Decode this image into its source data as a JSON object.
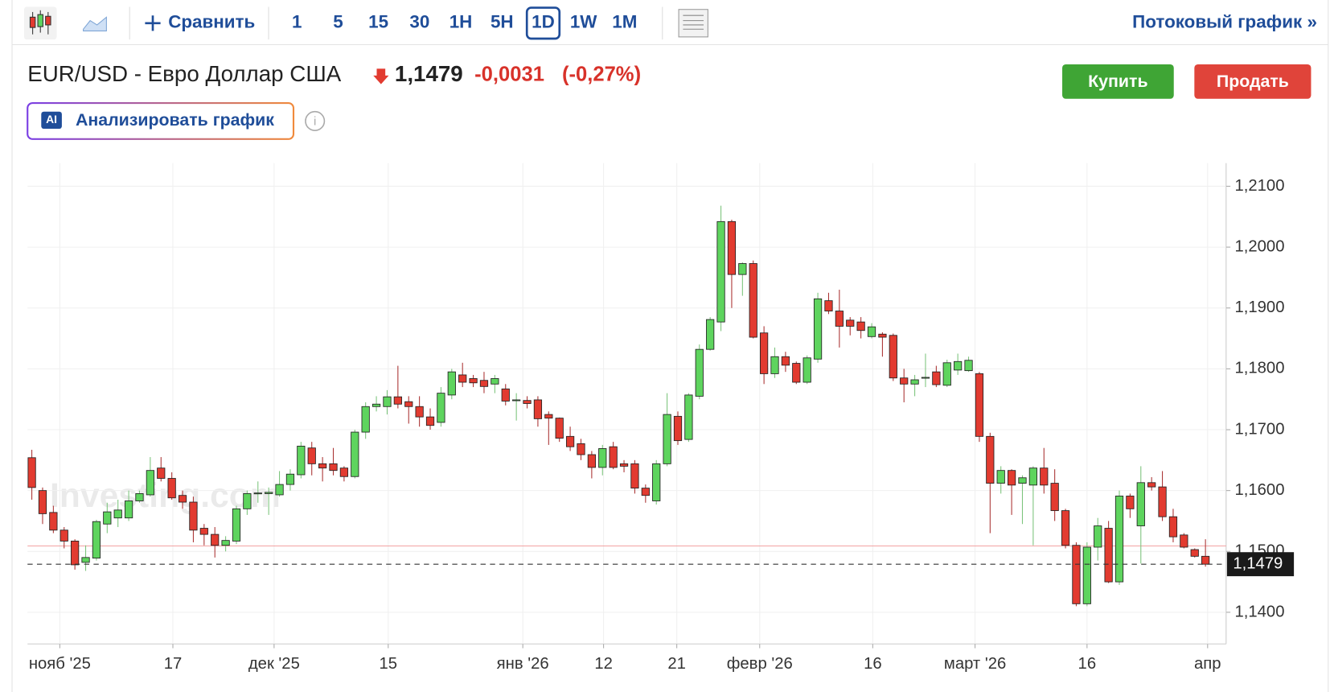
{
  "toolbar": {
    "compare": "Сравнить",
    "intervals": [
      "1",
      "5",
      "15",
      "30",
      "1H",
      "5H",
      "1D",
      "1W",
      "1M"
    ],
    "selected_interval": "1D",
    "streaming": "Потоковый график »"
  },
  "header": {
    "title": "EUR/USD - Евро Доллар США",
    "price": "1,1479",
    "change": "-0,0031",
    "change_pct": "(-0,27%)",
    "buy": "Купить",
    "sell": "Продать",
    "ai_badge": "AI",
    "analyze": "Анализировать график"
  },
  "watermark": "Investing.com",
  "chart_data": {
    "type": "candlestick",
    "up_color": "#5ed45e",
    "down_color": "#e23b30",
    "open": [
      1.1654,
      1.16,
      1.1564,
      1.1535,
      1.1517,
      1.1482,
      1.1489,
      1.1545,
      1.1555,
      1.1555,
      1.1583,
      1.1593,
      1.1637,
      1.162,
      1.1592,
      1.1581,
      1.1538,
      1.1528,
      1.151,
      1.1517,
      1.157,
      1.1595,
      1.1595,
      1.1593,
      1.161,
      1.1626,
      1.167,
      1.1644,
      1.1644,
      1.1637,
      1.1623,
      1.1696,
      1.1738,
      1.1738,
      1.1754,
      1.1746,
      1.1738,
      1.1721,
      1.1712,
      1.1757,
      1.179,
      1.1784,
      1.1781,
      1.1775,
      1.1767,
      1.1748,
      1.1748,
      1.1749,
      1.1725,
      1.1719,
      1.1689,
      1.1677,
      1.1659,
      1.1638,
      1.1672,
      1.1644,
      1.1644,
      1.1604,
      1.1583,
      1.1644,
      1.1722,
      1.1684,
      1.1755,
      1.1832,
      1.1877,
      1.2042,
      1.1955,
      1.1973,
      1.1859,
      1.1792,
      1.182,
      1.1809,
      1.1778,
      1.1816,
      1.1912,
      1.1895,
      1.188,
      1.1877,
      1.1853,
      1.1857,
      1.1855,
      1.1785,
      1.1775,
      1.1785,
      1.1795,
      1.1773,
      1.1798,
      1.1797,
      1.1792,
      1.1689,
      1.1612,
      1.1633,
      1.1612,
      1.1609,
      1.1637,
      1.1612,
      1.1567,
      1.151,
      1.1414,
      1.1507,
      1.1538,
      1.145,
      1.1591,
      1.1542,
      1.1613,
      1.1606,
      1.1557,
      1.1527,
      1.1503,
      1.1492
    ],
    "high": [
      1.1667,
      1.1605,
      1.1575,
      1.154,
      1.152,
      1.151,
      1.1552,
      1.158,
      1.1585,
      1.16,
      1.16,
      1.1655,
      1.1655,
      1.163,
      1.16,
      1.159,
      1.1545,
      1.154,
      1.1525,
      1.1575,
      1.16,
      1.1615,
      1.1605,
      1.1632,
      1.1635,
      1.168,
      1.168,
      1.1655,
      1.167,
      1.164,
      1.17,
      1.1745,
      1.1755,
      1.1765,
      1.1805,
      1.1755,
      1.1755,
      1.1735,
      1.177,
      1.18,
      1.181,
      1.179,
      1.1795,
      1.179,
      1.1775,
      1.176,
      1.1755,
      1.1755,
      1.173,
      1.172,
      1.1705,
      1.1685,
      1.1665,
      1.1675,
      1.168,
      1.165,
      1.165,
      1.161,
      1.165,
      1.176,
      1.173,
      1.176,
      1.184,
      1.1885,
      1.2068,
      1.2045,
      1.1975,
      1.1978,
      1.187,
      1.1835,
      1.1828,
      1.1812,
      1.1822,
      1.1925,
      1.1925,
      1.193,
      1.1885,
      1.1885,
      1.1875,
      1.186,
      1.1858,
      1.18,
      1.179,
      1.1825,
      1.1805,
      1.1815,
      1.1825,
      1.182,
      1.1795,
      1.1695,
      1.164,
      1.1635,
      1.1625,
      1.164,
      1.167,
      1.1635,
      1.157,
      1.1515,
      1.1515,
      1.1555,
      1.155,
      1.16,
      1.1595,
      1.164,
      1.1622,
      1.1632,
      1.157,
      1.153,
      1.1505,
      1.152
    ],
    "low": [
      1.1585,
      1.1545,
      1.153,
      1.1505,
      1.147,
      1.1468,
      1.1485,
      1.153,
      1.154,
      1.155,
      1.158,
      1.159,
      1.1615,
      1.1585,
      1.157,
      1.1515,
      1.151,
      1.149,
      1.15,
      1.1512,
      1.156,
      1.158,
      1.156,
      1.159,
      1.16,
      1.162,
      1.1625,
      1.1615,
      1.1625,
      1.1615,
      1.162,
      1.1685,
      1.173,
      1.1725,
      1.1735,
      1.171,
      1.1705,
      1.17,
      1.1705,
      1.175,
      1.177,
      1.177,
      1.176,
      1.176,
      1.174,
      1.1715,
      1.1735,
      1.1705,
      1.1675,
      1.168,
      1.1665,
      1.165,
      1.162,
      1.1625,
      1.1635,
      1.163,
      1.1595,
      1.158,
      1.1577,
      1.164,
      1.1675,
      1.168,
      1.175,
      1.183,
      1.1862,
      1.19,
      1.192,
      1.185,
      1.1775,
      1.1785,
      1.1795,
      1.1775,
      1.1775,
      1.181,
      1.189,
      1.1835,
      1.1855,
      1.185,
      1.185,
      1.182,
      1.178,
      1.1745,
      1.1755,
      1.177,
      1.177,
      1.177,
      1.179,
      1.1795,
      1.168,
      1.153,
      1.1595,
      1.156,
      1.1545,
      1.151,
      1.1595,
      1.155,
      1.1505,
      1.141,
      1.141,
      1.1485,
      1.1448,
      1.1445,
      1.1555,
      1.148,
      1.16,
      1.155,
      1.1515,
      1.1505,
      1.149,
      1.1475
    ],
    "close": [
      1.1605,
      1.1562,
      1.1535,
      1.1517,
      1.1478,
      1.149,
      1.1549,
      1.1565,
      1.1568,
      1.1583,
      1.1595,
      1.1633,
      1.162,
      1.1588,
      1.1581,
      1.1535,
      1.1528,
      1.151,
      1.1518,
      1.157,
      1.1595,
      1.1596,
      1.1597,
      1.161,
      1.1627,
      1.1673,
      1.1644,
      1.1637,
      1.1633,
      1.1623,
      1.1696,
      1.1738,
      1.1742,
      1.1754,
      1.1742,
      1.1738,
      1.1721,
      1.1707,
      1.176,
      1.1795,
      1.1778,
      1.1777,
      1.1771,
      1.1784,
      1.1747,
      1.1749,
      1.1743,
      1.1718,
      1.1719,
      1.1686,
      1.1672,
      1.1659,
      1.1638,
      1.1669,
      1.1638,
      1.164,
      1.1604,
      1.1592,
      1.1644,
      1.1725,
      1.1682,
      1.1757,
      1.1832,
      1.1881,
      1.2042,
      1.1955,
      1.1973,
      1.1852,
      1.1792,
      1.182,
      1.1806,
      1.1778,
      1.1818,
      1.1915,
      1.1895,
      1.187,
      1.187,
      1.1863,
      1.1869,
      1.1852,
      1.1785,
      1.1775,
      1.1782,
      1.1786,
      1.1774,
      1.181,
      1.1812,
      1.1814,
      1.1689,
      1.1612,
      1.1633,
      1.1609,
      1.1621,
      1.1637,
      1.1609,
      1.1567,
      1.151,
      1.1414,
      1.1507,
      1.1542,
      1.145,
      1.1591,
      1.157,
      1.1613,
      1.1606,
      1.1557,
      1.1524,
      1.1507,
      1.1492,
      1.1479
    ],
    "xlim": [
      -0.4,
      110.6
    ],
    "xticks": [
      {
        "value": 2.6,
        "label": "нояб '25"
      },
      {
        "value": 13.1,
        "label": "17"
      },
      {
        "value": 22.5,
        "label": "дек '25"
      },
      {
        "value": 33.1,
        "label": "15"
      },
      {
        "value": 45.6,
        "label": "янв '26"
      },
      {
        "value": 53.1,
        "label": "12"
      },
      {
        "value": 59.9,
        "label": "21"
      },
      {
        "value": 67.6,
        "label": "февр '26"
      },
      {
        "value": 78.1,
        "label": "16"
      },
      {
        "value": 87.6,
        "label": "март '26"
      },
      {
        "value": 98.0,
        "label": "16"
      },
      {
        "value": 109.2,
        "label": "апр"
      }
    ],
    "ylim": [
      1.1348,
      1.2138
    ],
    "yticks": [
      {
        "value": 1.14,
        "label": "1,1400"
      },
      {
        "value": 1.15,
        "label": "1,1500"
      },
      {
        "value": 1.16,
        "label": "1,1600"
      },
      {
        "value": 1.17,
        "label": "1,1700"
      },
      {
        "value": 1.18,
        "label": "1,1800"
      },
      {
        "value": 1.19,
        "label": "1,1900"
      },
      {
        "value": 1.2,
        "label": "1,2000"
      },
      {
        "value": 1.21,
        "label": "1,2100"
      }
    ],
    "grid": true,
    "reference_line": 1.1509,
    "last_price": {
      "value": 1.1479,
      "label": "1,1479"
    }
  }
}
